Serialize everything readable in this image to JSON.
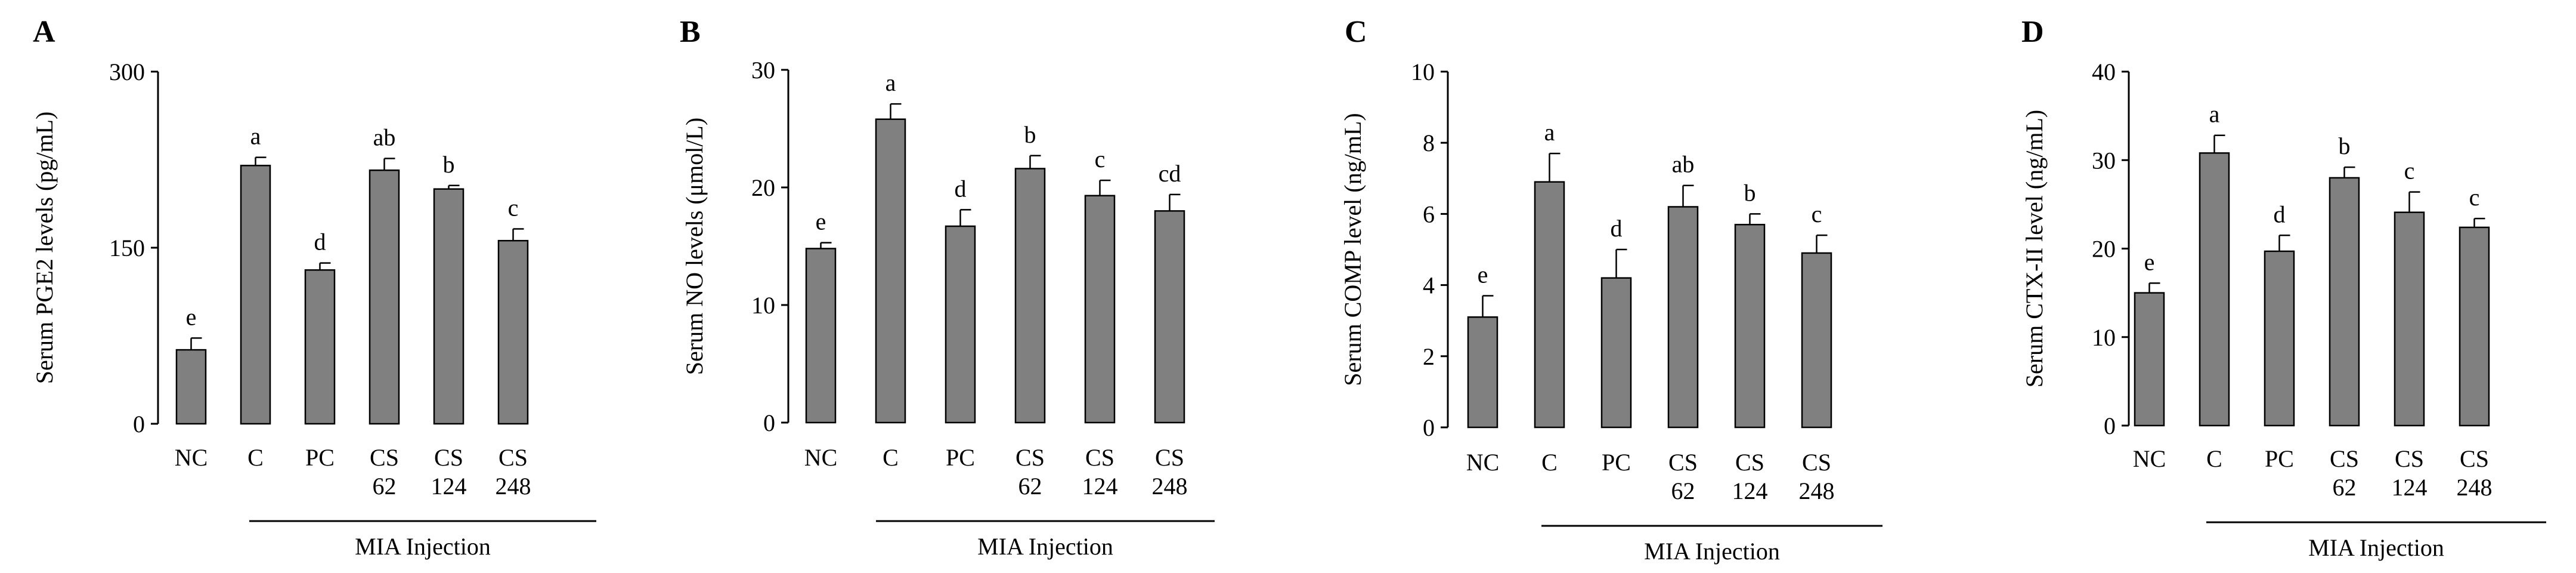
{
  "colors": {
    "bar": "#808080",
    "stroke": "#000000",
    "background": "#ffffff"
  },
  "group_label": "MIA Injection",
  "chart_data": [
    {
      "type": "bar",
      "panel": "A",
      "ylabel": "Serum PGE2 levels (pg/mL)",
      "ylim": [
        0,
        300
      ],
      "yticks": [
        "0",
        "150",
        "300"
      ],
      "categories": [
        [
          "NC"
        ],
        [
          "C"
        ],
        [
          "PC"
        ],
        [
          "CS",
          "62"
        ],
        [
          "CS",
          "124"
        ],
        [
          "CS",
          "248"
        ]
      ],
      "values": [
        63,
        220,
        131,
        216,
        200,
        156
      ],
      "errors": [
        10,
        7,
        6,
        10,
        3,
        10
      ],
      "significance": [
        "e",
        "a",
        "d",
        "ab",
        "b",
        "c"
      ],
      "group_label": "MIA Injection"
    },
    {
      "type": "bar",
      "panel": "B",
      "ylabel": "Serum NO levels (μmol/L)",
      "ylim": [
        0,
        30
      ],
      "yticks": [
        "0",
        "10",
        "20",
        "30"
      ],
      "categories": [
        [
          "NC"
        ],
        [
          "C"
        ],
        [
          "PC"
        ],
        [
          "CS",
          "62"
        ],
        [
          "CS",
          "124"
        ],
        [
          "CS",
          "248"
        ]
      ],
      "values": [
        14.8,
        25.8,
        16.7,
        21.6,
        19.3,
        18.0
      ],
      "errors": [
        0.5,
        1.3,
        1.4,
        1.1,
        1.3,
        1.4
      ],
      "significance": [
        "e",
        "a",
        "d",
        "b",
        "c",
        "cd"
      ],
      "group_label": "MIA Injection"
    },
    {
      "type": "bar",
      "panel": "C",
      "ylabel": "Serum COMP level (ng/mL)",
      "ylim": [
        0,
        10
      ],
      "yticks": [
        "0",
        "2",
        "4",
        "6",
        "8",
        "10"
      ],
      "categories": [
        [
          "NC"
        ],
        [
          "C"
        ],
        [
          "PC"
        ],
        [
          "CS",
          "62"
        ],
        [
          "CS",
          "124"
        ],
        [
          "CS",
          "248"
        ]
      ],
      "values": [
        3.1,
        6.9,
        4.2,
        6.2,
        5.7,
        4.9
      ],
      "errors": [
        0.6,
        0.8,
        0.8,
        0.6,
        0.3,
        0.5
      ],
      "significance": [
        "e",
        "a",
        "d",
        "ab",
        "b",
        "c"
      ],
      "group_label": "MIA Injection"
    },
    {
      "type": "bar",
      "panel": "D",
      "ylabel": "Serum CTX-II level (ng/mL)",
      "ylim": [
        0,
        40
      ],
      "yticks": [
        "0",
        "10",
        "20",
        "30",
        "40"
      ],
      "categories": [
        [
          "NC"
        ],
        [
          "C"
        ],
        [
          "PC"
        ],
        [
          "CS",
          "62"
        ],
        [
          "CS",
          "124"
        ],
        [
          "CS",
          "248"
        ]
      ],
      "values": [
        15.0,
        30.8,
        19.7,
        28.0,
        24.1,
        22.4
      ],
      "errors": [
        1.1,
        2.0,
        1.8,
        1.2,
        2.3,
        1.0
      ],
      "significance": [
        "e",
        "a",
        "d",
        "b",
        "c",
        "c"
      ],
      "group_label": "MIA Injection"
    }
  ]
}
